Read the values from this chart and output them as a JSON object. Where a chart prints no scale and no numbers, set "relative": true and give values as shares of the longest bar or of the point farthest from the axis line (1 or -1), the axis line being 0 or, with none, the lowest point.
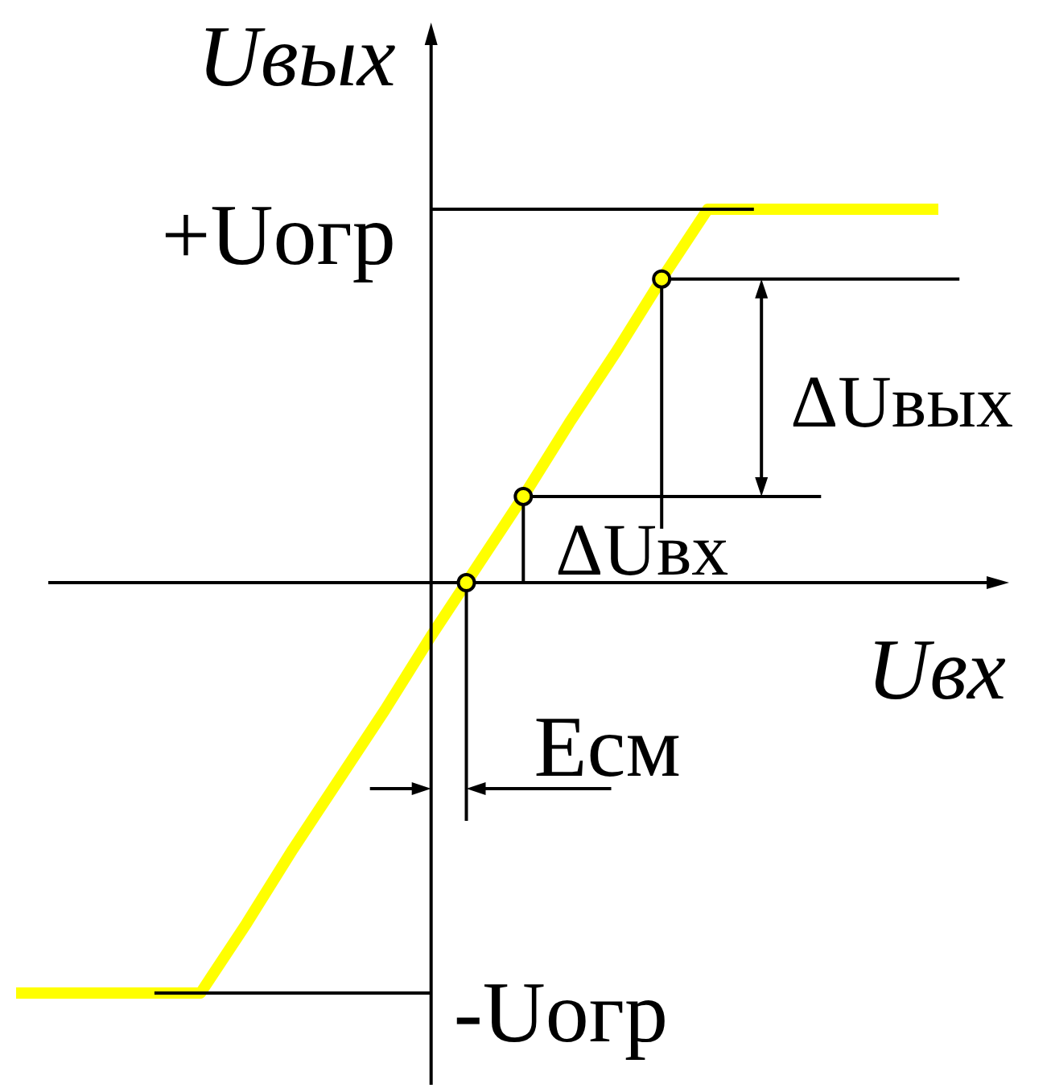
{
  "chart_data": {
    "type": "line",
    "xlabel": "Uвх",
    "ylabel": "Uвых",
    "relative": true,
    "categories": [
      null,
      null,
      null,
      null,
      null,
      null,
      null,
      null,
      null,
      null,
      null,
      null,
      null,
      null,
      null,
      null,
      null,
      null,
      null,
      null,
      null
    ],
    "series": [
      {
        "color": "#ffff00",
        "values": [
          -1,
          -1,
          -1,
          -1,
          -1,
          -0.83,
          -0.65,
          -0.48,
          -0.31,
          -0.13,
          0.04,
          0.21,
          0.39,
          0.56,
          0.74,
          0.91,
          0.91,
          0.91,
          0.91,
          0.91,
          0.91
        ]
      }
    ],
    "ref_lines": [
      {
        "axis": "y",
        "value": 0.91,
        "label": "+Uогр"
      },
      {
        "axis": "y",
        "value": -1,
        "label": "-Uогр"
      }
    ],
    "annotations": [
      "ΔUвых",
      "ΔUвх",
      "Eсм"
    ]
  }
}
